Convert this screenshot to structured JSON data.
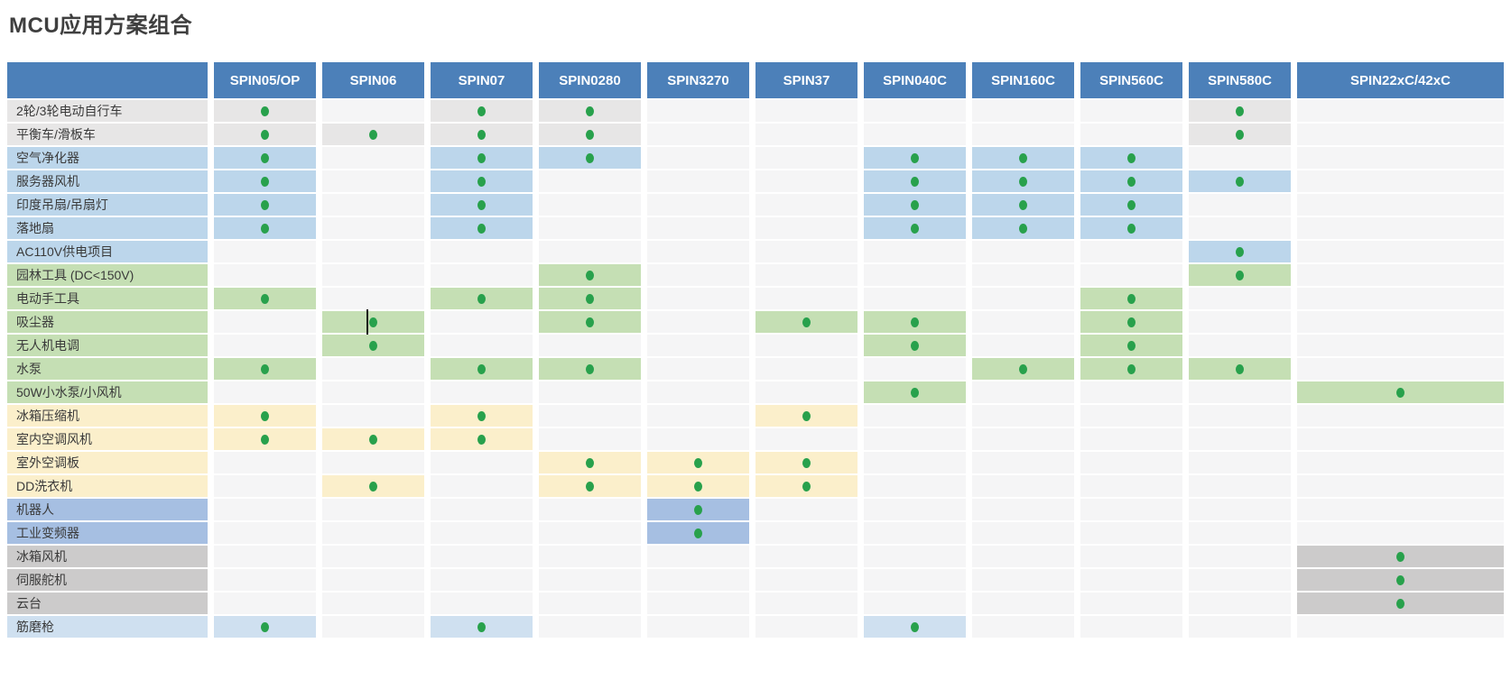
{
  "title": "MCU应用方案组合",
  "colors": {
    "header_bg": "#4C80B9",
    "header_text": "#FFFFFF",
    "dot": "#28A14C",
    "empty_cell": "#F5F5F6",
    "row_palette": {
      "gray": "#E7E6E6",
      "blue": "#BCD6EB",
      "green": "#C5DFB4",
      "yellow": "#FBEFCB",
      "periwinkle": "#A6BFE2",
      "gray2": "#CCCBCB",
      "lightblue": "#CFE0F0"
    }
  },
  "table": {
    "corner_label": "",
    "columns": [
      "SPIN05/OP",
      "SPIN06",
      "SPIN07",
      "SPIN0280",
      "SPIN3270",
      "SPIN37",
      "SPIN040C",
      "SPIN160C",
      "SPIN560C",
      "SPIN580C",
      "SPIN22xC/42xC"
    ],
    "rows": [
      {
        "label": "2轮/3轮电动自行车",
        "color": "gray",
        "dots": [
          1,
          0,
          1,
          1,
          0,
          0,
          0,
          0,
          0,
          1,
          0
        ]
      },
      {
        "label": "平衡车/滑板车",
        "color": "gray",
        "dots": [
          1,
          1,
          1,
          1,
          0,
          0,
          0,
          0,
          0,
          1,
          0
        ]
      },
      {
        "label": "空气净化器",
        "color": "blue",
        "dots": [
          1,
          0,
          1,
          1,
          0,
          0,
          1,
          1,
          1,
          0,
          0
        ]
      },
      {
        "label": "服务器风机",
        "color": "blue",
        "dots": [
          1,
          0,
          1,
          0,
          0,
          0,
          1,
          1,
          1,
          1,
          0
        ]
      },
      {
        "label": "印度吊扇/吊扇灯",
        "color": "blue",
        "dots": [
          1,
          0,
          1,
          0,
          0,
          0,
          1,
          1,
          1,
          0,
          0
        ]
      },
      {
        "label": "落地扇",
        "color": "blue",
        "dots": [
          1,
          0,
          1,
          0,
          0,
          0,
          1,
          1,
          1,
          0,
          0
        ]
      },
      {
        "label": "AC110V供电项目",
        "color": "blue",
        "dots": [
          0,
          0,
          0,
          0,
          0,
          0,
          0,
          0,
          0,
          1,
          0
        ]
      },
      {
        "label": "园林工具 (DC<150V)",
        "color": "green",
        "dots": [
          0,
          0,
          0,
          1,
          0,
          0,
          0,
          0,
          0,
          1,
          0
        ]
      },
      {
        "label": "电动手工具",
        "color": "green",
        "dots": [
          1,
          0,
          1,
          1,
          0,
          0,
          0,
          0,
          1,
          0,
          0
        ]
      },
      {
        "label": "吸尘器",
        "color": "green",
        "dots": [
          0,
          1,
          0,
          1,
          0,
          1,
          1,
          0,
          1,
          0,
          0
        ],
        "cursor_col": 1
      },
      {
        "label": "无人机电调",
        "color": "green",
        "dots": [
          0,
          1,
          0,
          0,
          0,
          0,
          1,
          0,
          1,
          0,
          0
        ]
      },
      {
        "label": "水泵",
        "color": "green",
        "dots": [
          1,
          0,
          1,
          1,
          0,
          0,
          0,
          1,
          1,
          1,
          0
        ]
      },
      {
        "label": "50W小水泵/小风机",
        "color": "green",
        "dots": [
          0,
          0,
          0,
          0,
          0,
          0,
          1,
          0,
          0,
          0,
          1
        ]
      },
      {
        "label": "冰箱压缩机",
        "color": "yellow",
        "dots": [
          1,
          0,
          1,
          0,
          0,
          1,
          0,
          0,
          0,
          0,
          0
        ]
      },
      {
        "label": "室内空调风机",
        "color": "yellow",
        "dots": [
          1,
          1,
          1,
          0,
          0,
          0,
          0,
          0,
          0,
          0,
          0
        ]
      },
      {
        "label": "室外空调板",
        "color": "yellow",
        "dots": [
          0,
          0,
          0,
          1,
          1,
          1,
          0,
          0,
          0,
          0,
          0
        ]
      },
      {
        "label": "DD洗衣机",
        "color": "yellow",
        "dots": [
          0,
          1,
          0,
          1,
          1,
          1,
          0,
          0,
          0,
          0,
          0
        ]
      },
      {
        "label": "机器人",
        "color": "periwinkle",
        "dots": [
          0,
          0,
          0,
          0,
          1,
          0,
          0,
          0,
          0,
          0,
          0
        ]
      },
      {
        "label": "工业变频器",
        "color": "periwinkle",
        "dots": [
          0,
          0,
          0,
          0,
          1,
          0,
          0,
          0,
          0,
          0,
          0
        ]
      },
      {
        "label": "冰箱风机",
        "color": "gray2",
        "dots": [
          0,
          0,
          0,
          0,
          0,
          0,
          0,
          0,
          0,
          0,
          1
        ]
      },
      {
        "label": "伺服舵机",
        "color": "gray2",
        "dots": [
          0,
          0,
          0,
          0,
          0,
          0,
          0,
          0,
          0,
          0,
          1
        ]
      },
      {
        "label": "云台",
        "color": "gray2",
        "dots": [
          0,
          0,
          0,
          0,
          0,
          0,
          0,
          0,
          0,
          0,
          1
        ]
      },
      {
        "label": "筋磨枪",
        "color": "lightblue",
        "dots": [
          1,
          0,
          1,
          0,
          0,
          0,
          1,
          0,
          0,
          0,
          0
        ]
      }
    ]
  }
}
